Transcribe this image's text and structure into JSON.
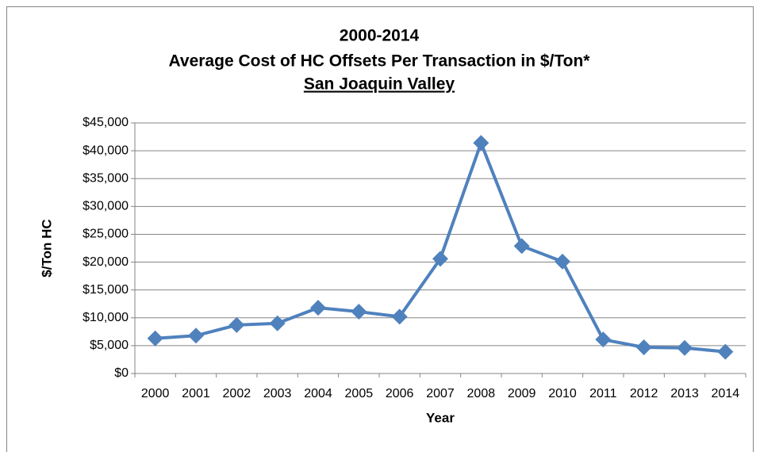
{
  "chart_data": {
    "type": "line",
    "title": [
      "2000-2014",
      "Average Cost of HC Offsets Per Transaction in  $/Ton*",
      "San Joaquin Valley"
    ],
    "x_label": "Year",
    "y_label": "$/Ton HC",
    "categories": [
      "2000",
      "2001",
      "2002",
      "2003",
      "2004",
      "2005",
      "2006",
      "2007",
      "2008",
      "2009",
      "2010",
      "2011",
      "2012",
      "2013",
      "2014"
    ],
    "series": [
      {
        "color": "#4f81bd",
        "values": [
          6300,
          6800,
          8700,
          9000,
          11800,
          11100,
          10200,
          20600,
          41400,
          22900,
          20100,
          6100,
          4700,
          4600,
          3900
        ]
      }
    ],
    "ylim": [
      0,
      45000
    ],
    "yticks": [
      {
        "value": 0,
        "label": "$0"
      },
      {
        "value": 5000,
        "label": "$5,000"
      },
      {
        "value": 10000,
        "label": "$10,000"
      },
      {
        "value": 15000,
        "label": "$15,000"
      },
      {
        "value": 20000,
        "label": "$20,000"
      },
      {
        "value": 25000,
        "label": "$25,000"
      },
      {
        "value": 30000,
        "label": "$30,000"
      },
      {
        "value": 35000,
        "label": "$35,000"
      },
      {
        "value": 40000,
        "label": "$40,000"
      },
      {
        "value": 45000,
        "label": "$45,000"
      }
    ],
    "grid": true
  }
}
